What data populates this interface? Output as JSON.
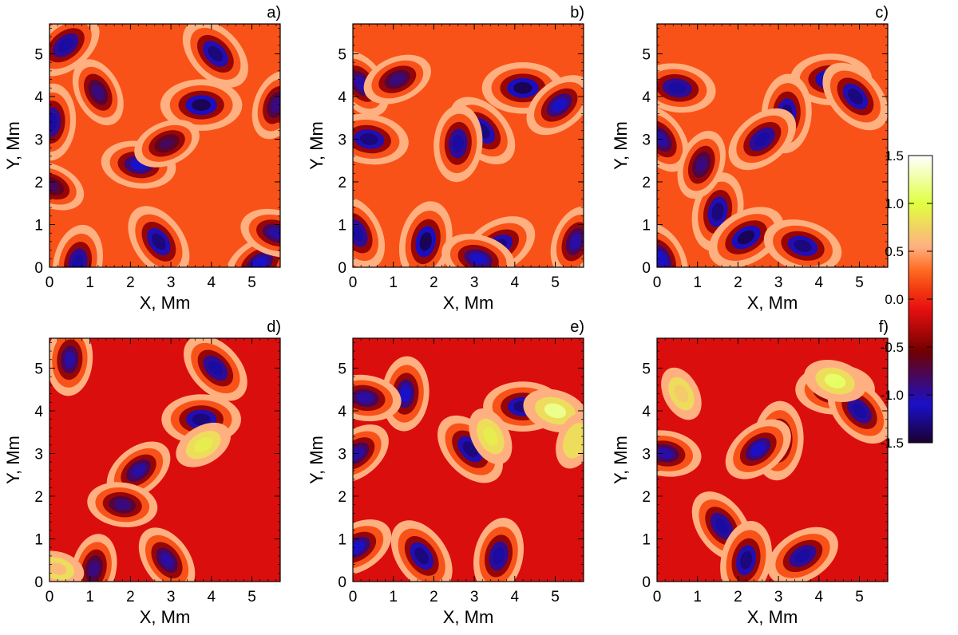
{
  "colors": {
    "deep": "#1a0030",
    "blue": "#1a10c8",
    "dark_red": "#700000",
    "red": "#e81010",
    "red_orange": "#f23a10",
    "orange": "#ff6a20",
    "light_orange": "#ffb080",
    "yellow": "#e0ff40",
    "white": "#ffffff"
  },
  "colorbar": {
    "ticks": [
      "1.5",
      "1.0",
      "0.5",
      "0.0",
      "-0.5",
      "-1.0",
      "-1.5"
    ],
    "range": [
      -1.5,
      1.5
    ]
  },
  "chart_data": [
    {
      "type": "heatmap",
      "panel": "a)",
      "xlabel": "X, Mm",
      "ylabel": "Y, Mm",
      "xticks": [
        "0",
        "1",
        "2",
        "3",
        "4",
        "5"
      ],
      "yticks": [
        "0",
        "1",
        "2",
        "3",
        "4",
        "5"
      ],
      "xlim": [
        0,
        5.7
      ],
      "ylim": [
        0,
        5.7
      ],
      "background_value": 0.2,
      "features": [
        {
          "x": 3.75,
          "y": 3.8,
          "value": -1.4
        },
        {
          "x": 4.1,
          "y": 5.0,
          "value": -1.3
        },
        {
          "x": 0.05,
          "y": 3.4,
          "value": -1.2
        },
        {
          "x": 0.4,
          "y": 5.2,
          "value": -1.2
        },
        {
          "x": 2.2,
          "y": 2.4,
          "value": -1.1
        },
        {
          "x": 2.7,
          "y": 0.6,
          "value": -1.3
        },
        {
          "x": 0.7,
          "y": 0.1,
          "value": -1.2
        },
        {
          "x": 5.2,
          "y": 0.1,
          "value": -1.1
        },
        {
          "x": 5.6,
          "y": 0.8,
          "value": -1.0
        },
        {
          "x": 1.2,
          "y": 4.1,
          "value": -0.9
        },
        {
          "x": 5.6,
          "y": 3.8,
          "value": -0.9
        },
        {
          "x": 2.9,
          "y": 2.9,
          "value": -0.8
        },
        {
          "x": 0.05,
          "y": 1.9,
          "value": -0.8
        }
      ]
    },
    {
      "type": "heatmap",
      "panel": "b)",
      "xlabel": "X, Mm",
      "ylabel": "Y, Mm",
      "xticks": [
        "0",
        "1",
        "2",
        "3",
        "4",
        "5"
      ],
      "yticks": [
        "0",
        "1",
        "2",
        "3",
        "4",
        "5"
      ],
      "xlim": [
        0,
        5.7
      ],
      "ylim": [
        0,
        5.7
      ],
      "background_value": 0.2,
      "features": [
        {
          "x": 4.2,
          "y": 4.2,
          "value": -1.4
        },
        {
          "x": 3.2,
          "y": 3.2,
          "value": -1.3
        },
        {
          "x": 2.6,
          "y": 2.9,
          "value": -1.2
        },
        {
          "x": 5.1,
          "y": 3.8,
          "value": -1.1
        },
        {
          "x": 0.4,
          "y": 3.0,
          "value": -1.3
        },
        {
          "x": 0.2,
          "y": 4.3,
          "value": -1.0
        },
        {
          "x": 1.8,
          "y": 0.6,
          "value": -1.4
        },
        {
          "x": 3.6,
          "y": 0.5,
          "value": -1.3
        },
        {
          "x": 3.1,
          "y": 0.2,
          "value": -1.1
        },
        {
          "x": 0.1,
          "y": 0.8,
          "value": -1.2
        },
        {
          "x": 5.5,
          "y": 0.6,
          "value": -1.0
        },
        {
          "x": 1.1,
          "y": 4.4,
          "value": -0.9
        }
      ]
    },
    {
      "type": "heatmap",
      "panel": "c)",
      "xlabel": "X, Mm",
      "ylabel": "Y, Mm",
      "xticks": [
        "0",
        "1",
        "2",
        "3",
        "4",
        "5"
      ],
      "yticks": [
        "0",
        "1",
        "2",
        "3",
        "4",
        "5"
      ],
      "xlim": [
        0,
        5.7
      ],
      "ylim": [
        0,
        5.7
      ],
      "background_value": 0.2,
      "features": [
        {
          "x": 4.3,
          "y": 4.4,
          "value": -1.4
        },
        {
          "x": 4.9,
          "y": 4.0,
          "value": -1.3
        },
        {
          "x": 3.2,
          "y": 3.6,
          "value": -1.3
        },
        {
          "x": 2.6,
          "y": 3.0,
          "value": -1.2
        },
        {
          "x": 0.5,
          "y": 4.2,
          "value": -1.2
        },
        {
          "x": 0.1,
          "y": 3.0,
          "value": -1.0
        },
        {
          "x": 1.5,
          "y": 1.3,
          "value": -1.3
        },
        {
          "x": 2.2,
          "y": 0.7,
          "value": -1.4
        },
        {
          "x": 3.6,
          "y": 0.5,
          "value": -1.3
        },
        {
          "x": 0.1,
          "y": 0.2,
          "value": -1.1
        },
        {
          "x": 1.1,
          "y": 2.4,
          "value": -0.9
        }
      ]
    },
    {
      "type": "heatmap",
      "panel": "d)",
      "xlabel": "X, Mm",
      "ylabel": "Y, Mm",
      "xticks": [
        "0",
        "1",
        "2",
        "3",
        "4",
        "5"
      ],
      "yticks": [
        "0",
        "1",
        "2",
        "3",
        "4",
        "5"
      ],
      "xlim": [
        0,
        5.7
      ],
      "ylim": [
        0,
        5.7
      ],
      "background_value": -0.15,
      "features": [
        {
          "x": 3.75,
          "y": 3.8,
          "value": -1.3
        },
        {
          "x": 4.1,
          "y": 5.0,
          "value": -1.2
        },
        {
          "x": 0.5,
          "y": 5.2,
          "value": -1.0
        },
        {
          "x": 2.2,
          "y": 2.6,
          "value": -1.0
        },
        {
          "x": 1.8,
          "y": 1.8,
          "value": -0.9
        },
        {
          "x": 2.9,
          "y": 0.5,
          "value": -1.0
        },
        {
          "x": 1.1,
          "y": 0.3,
          "value": -0.9
        },
        {
          "x": 3.8,
          "y": 3.2,
          "value": 0.9
        },
        {
          "x": 0.2,
          "y": 0.3,
          "value": 0.6
        }
      ]
    },
    {
      "type": "heatmap",
      "panel": "e)",
      "xlabel": "X, Mm",
      "ylabel": "Y, Mm",
      "xticks": [
        "0",
        "1",
        "2",
        "3",
        "4",
        "5"
      ],
      "yticks": [
        "0",
        "1",
        "2",
        "3",
        "4",
        "5"
      ],
      "xlim": [
        0,
        5.7
      ],
      "ylim": [
        0,
        5.7
      ],
      "background_value": -0.15,
      "features": [
        {
          "x": 4.2,
          "y": 4.1,
          "value": -1.3
        },
        {
          "x": 2.9,
          "y": 3.1,
          "value": -1.3
        },
        {
          "x": 1.3,
          "y": 4.4,
          "value": -1.1
        },
        {
          "x": 0.1,
          "y": 3.0,
          "value": -1.0
        },
        {
          "x": 0.3,
          "y": 4.3,
          "value": -1.0
        },
        {
          "x": 1.7,
          "y": 0.6,
          "value": -1.3
        },
        {
          "x": 3.6,
          "y": 0.6,
          "value": -1.2
        },
        {
          "x": 0.1,
          "y": 0.8,
          "value": -1.1
        },
        {
          "x": 5.0,
          "y": 4.0,
          "value": 1.2
        },
        {
          "x": 3.4,
          "y": 3.4,
          "value": 0.9
        },
        {
          "x": 5.5,
          "y": 3.3,
          "value": 0.8
        }
      ]
    },
    {
      "type": "heatmap",
      "panel": "f)",
      "xlabel": "X, Mm",
      "ylabel": "Y, Mm",
      "xticks": [
        "0",
        "1",
        "2",
        "3",
        "4",
        "5"
      ],
      "yticks": [
        "0",
        "1",
        "2",
        "3",
        "4",
        "5"
      ],
      "xlim": [
        0,
        5.7
      ],
      "ylim": [
        0,
        5.7
      ],
      "background_value": -0.15,
      "features": [
        {
          "x": 4.4,
          "y": 4.5,
          "value": -1.3
        },
        {
          "x": 5.0,
          "y": 4.0,
          "value": -1.2
        },
        {
          "x": 3.0,
          "y": 3.3,
          "value": -1.3
        },
        {
          "x": 2.5,
          "y": 3.1,
          "value": -1.1
        },
        {
          "x": 0.2,
          "y": 3.0,
          "value": -1.0
        },
        {
          "x": 1.6,
          "y": 1.3,
          "value": -1.2
        },
        {
          "x": 2.2,
          "y": 0.5,
          "value": -1.3
        },
        {
          "x": 3.6,
          "y": 0.6,
          "value": -1.2
        },
        {
          "x": 4.4,
          "y": 4.7,
          "value": 1.1
        },
        {
          "x": 0.6,
          "y": 4.4,
          "value": 0.7
        }
      ]
    }
  ]
}
